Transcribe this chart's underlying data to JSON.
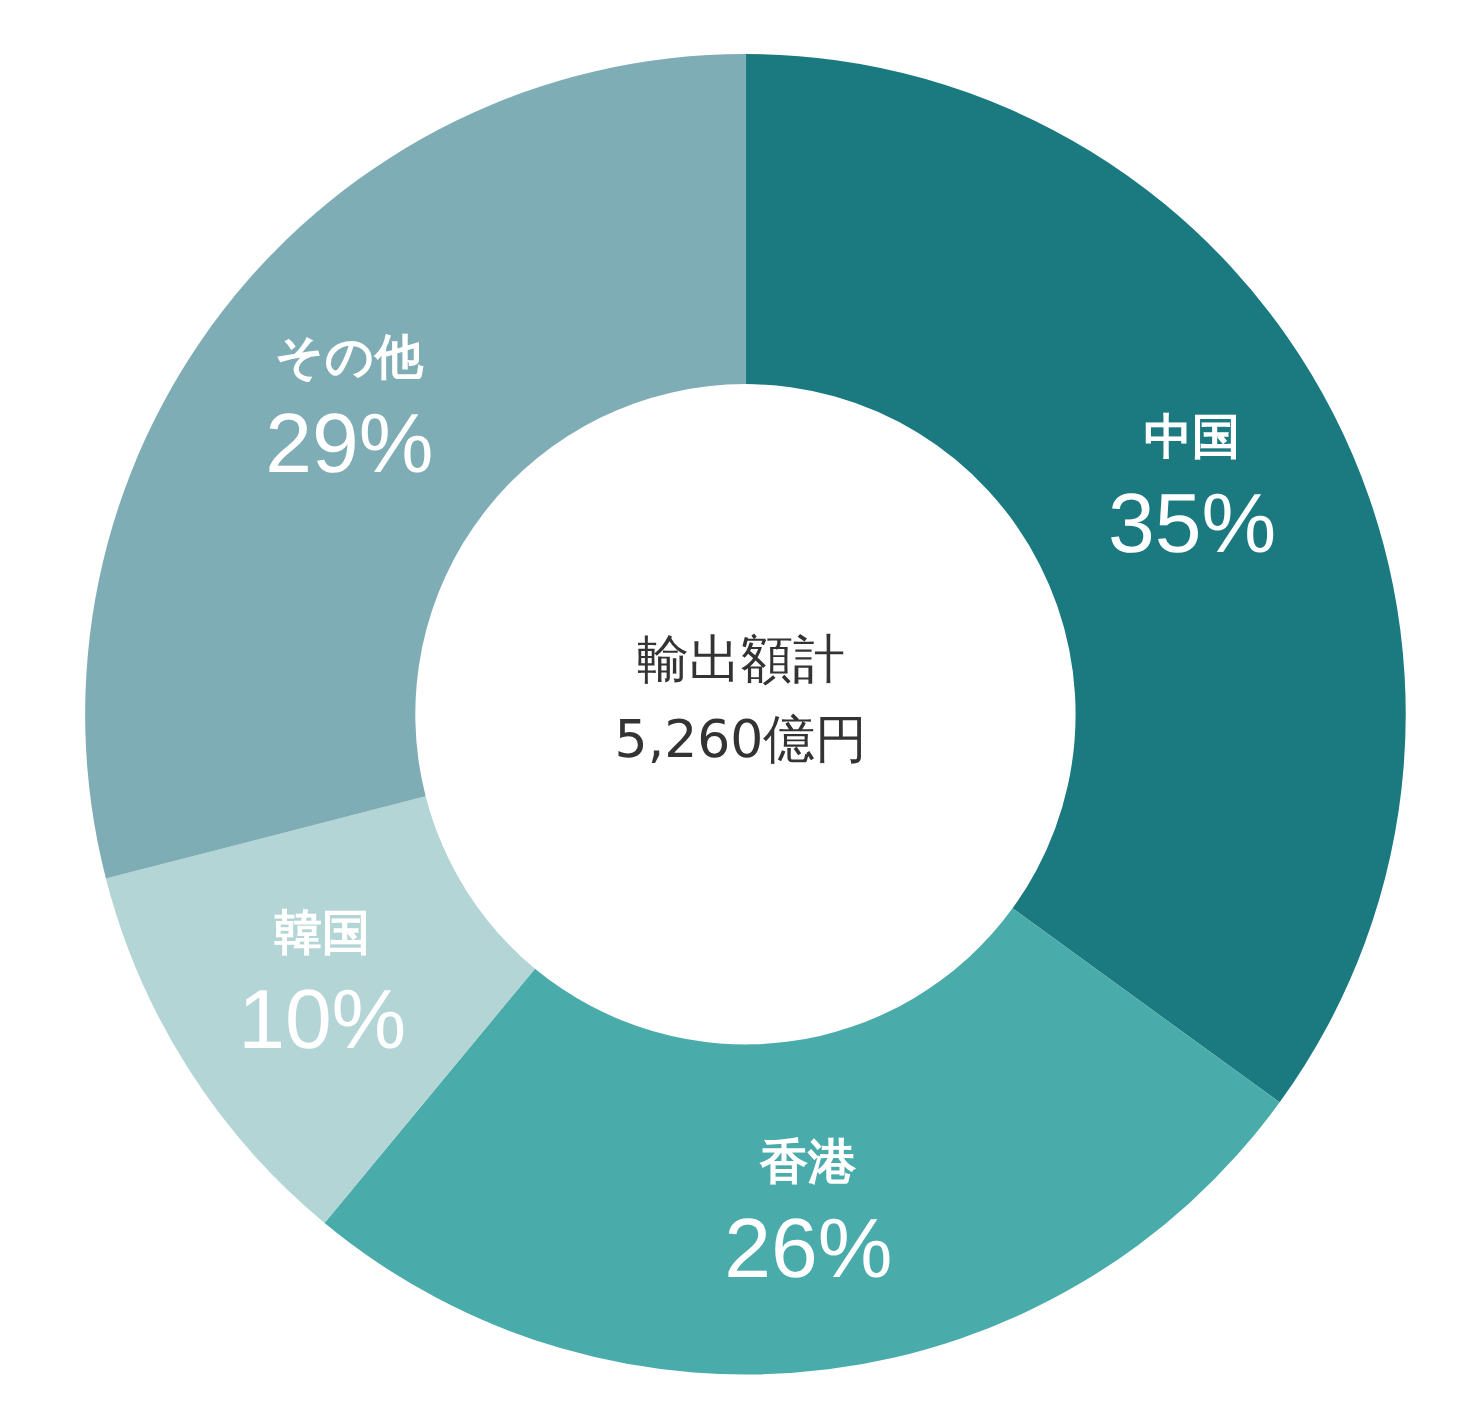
{
  "chart_data": {
    "type": "donut",
    "title": "輸出額計",
    "subtitle": "5,260億円",
    "categories": [
      "中国",
      "香港",
      "韓国",
      "その他"
    ],
    "values": [
      35,
      26,
      10,
      29
    ],
    "colors": [
      "#1a7a80",
      "#4aacaa",
      "#b3d5d5",
      "#7fadb5"
    ],
    "value_labels": [
      "35%",
      "26%",
      "10%",
      "29%"
    ],
    "legend": false
  }
}
